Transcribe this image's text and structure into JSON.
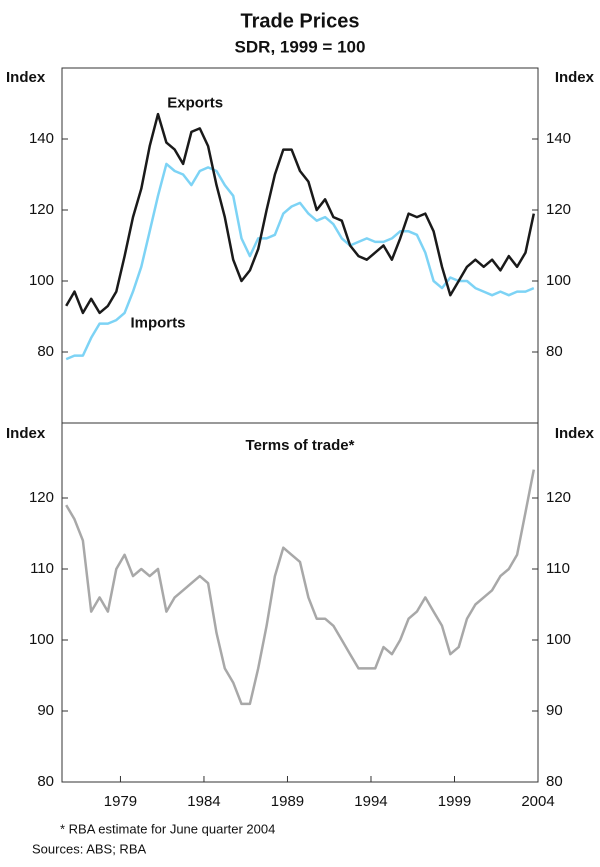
{
  "chart_data": [
    {
      "type": "line",
      "title": "Trade Prices",
      "subtitle": "SDR, 1999 = 100",
      "ylabel": "Index",
      "y2label": "Index",
      "xlim": [
        1975.5,
        2004.0
      ],
      "ylim": [
        60,
        160
      ],
      "yticks": [
        80,
        100,
        120,
        140
      ],
      "y2lim": [
        60,
        160
      ],
      "y2ticks": [
        80,
        100,
        120,
        140
      ],
      "x": [
        1975.75,
        1976.25,
        1976.75,
        1977.25,
        1977.75,
        1978.25,
        1978.75,
        1979.25,
        1979.75,
        1980.25,
        1980.75,
        1981.25,
        1981.75,
        1982.25,
        1982.75,
        1983.25,
        1983.75,
        1984.25,
        1984.75,
        1985.25,
        1985.75,
        1986.25,
        1986.75,
        1987.25,
        1987.75,
        1988.25,
        1988.75,
        1989.25,
        1989.75,
        1990.25,
        1990.75,
        1991.25,
        1991.75,
        1992.25,
        1992.75,
        1993.25,
        1993.75,
        1994.25,
        1994.75,
        1995.25,
        1995.75,
        1996.25,
        1996.75,
        1997.25,
        1997.75,
        1998.25,
        1998.75,
        1999.25,
        1999.75,
        2000.25,
        2000.75,
        2001.25,
        2001.75,
        2002.25,
        2002.75,
        2003.25,
        2003.75
      ],
      "series": [
        {
          "name": "Exports",
          "color": "#1a1a1a",
          "values": [
            93,
            97,
            91,
            95,
            91,
            93,
            97,
            107,
            118,
            126,
            138,
            147,
            139,
            137,
            133,
            142,
            143,
            138,
            127,
            118,
            106,
            100,
            103,
            109,
            120,
            130,
            137,
            137,
            131,
            128,
            120,
            123,
            118,
            117,
            110,
            107,
            106,
            108,
            110,
            106,
            112,
            119,
            118,
            119,
            114,
            104,
            96,
            100,
            104,
            106,
            104,
            106,
            103,
            107,
            104,
            108,
            119
          ]
        },
        {
          "name": "Imports",
          "color": "#7dd3f5",
          "values": [
            78,
            79,
            79,
            84,
            88,
            88,
            89,
            91,
            97,
            104,
            114,
            124,
            133,
            131,
            130,
            127,
            131,
            132,
            131,
            127,
            124,
            112,
            107,
            112,
            112,
            113,
            119,
            121,
            122,
            119,
            117,
            118,
            116,
            112,
            110,
            111,
            112,
            111,
            111,
            112,
            114,
            114,
            113,
            108,
            100,
            98,
            101,
            100,
            100,
            98,
            97,
            96,
            97,
            96,
            97,
            97,
            98
          ]
        }
      ]
    },
    {
      "type": "line",
      "title": "Terms of trade*",
      "ylabel": "Index",
      "y2label": "Index",
      "xlim": [
        1975.5,
        2004.0
      ],
      "xticks": [
        1979,
        1984,
        1989,
        1994,
        1999,
        2004
      ],
      "ylim": [
        80,
        130
      ],
      "yticks": [
        80,
        90,
        100,
        110,
        120
      ],
      "y2lim": [
        80,
        130
      ],
      "y2ticks": [
        80,
        90,
        100,
        110,
        120
      ],
      "x": [
        1975.75,
        1976.25,
        1976.75,
        1977.25,
        1977.75,
        1978.25,
        1978.75,
        1979.25,
        1979.75,
        1980.25,
        1980.75,
        1981.25,
        1981.75,
        1982.25,
        1982.75,
        1983.25,
        1983.75,
        1984.25,
        1984.75,
        1985.25,
        1985.75,
        1986.25,
        1986.75,
        1987.25,
        1987.75,
        1988.25,
        1988.75,
        1989.25,
        1989.75,
        1990.25,
        1990.75,
        1991.25,
        1991.75,
        1992.25,
        1992.75,
        1993.25,
        1993.75,
        1994.25,
        1994.75,
        1995.25,
        1995.75,
        1996.25,
        1996.75,
        1997.25,
        1997.75,
        1998.25,
        1998.75,
        1999.25,
        1999.75,
        2000.25,
        2000.75,
        2001.25,
        2001.75,
        2002.25,
        2002.75,
        2003.25,
        2003.75
      ],
      "color": "#a8a8a8",
      "values": [
        119,
        117,
        114,
        104,
        106,
        104,
        110,
        112,
        109,
        110,
        109,
        110,
        104,
        106,
        107,
        108,
        109,
        108,
        101,
        96,
        94,
        91,
        91,
        96,
        102,
        109,
        113,
        112,
        111,
        106,
        103,
        103,
        102,
        100,
        98,
        96,
        96,
        96,
        99,
        98,
        100,
        103,
        104,
        106,
        104,
        102,
        98,
        99,
        103,
        105,
        106,
        107,
        109,
        110,
        112,
        118,
        124
      ]
    }
  ],
  "notes": [
    "*     RBA estimate for June quarter 2004",
    "Sources: ABS; RBA"
  ]
}
